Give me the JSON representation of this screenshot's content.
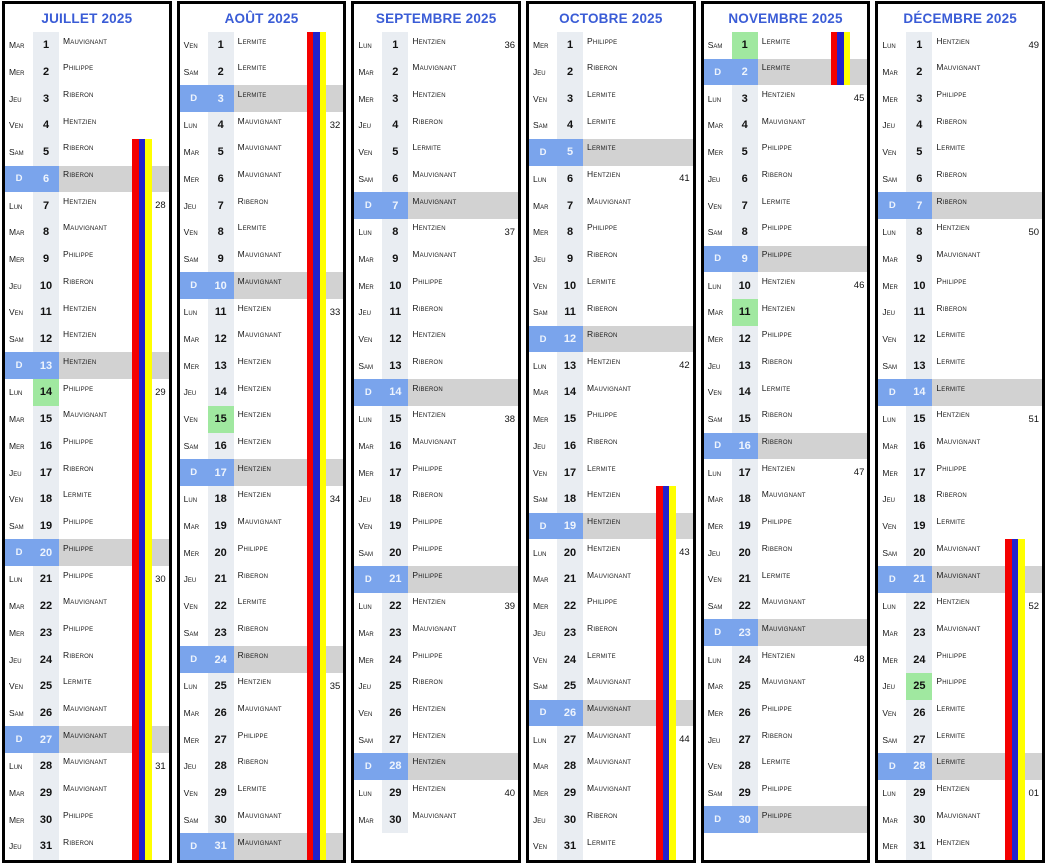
{
  "document": {
    "type": "on-call planning calendar",
    "year": "2025",
    "day_fields": [
      "dow",
      "num",
      "person",
      "week",
      "holiday"
    ]
  },
  "colors": {
    "header_blue": "#3a5cd6",
    "sunday_blue": "#7aa4ec",
    "sunday_gray": "#d2d2d2",
    "holiday_green": "#a0e8a0",
    "day_number_cell": "#e9edf2",
    "border_black": "#000000",
    "stripe_zones": [
      "#f40000",
      "#2222cc",
      "#ffff00"
    ]
  },
  "months": [
    {
      "title": "JUILLET 2025",
      "stripe": {
        "from": 5,
        "to": 31
      },
      "days": [
        [
          "Mar",
          1,
          "Mauvignant",
          "",
          0
        ],
        [
          "Mer",
          2,
          "Philippe",
          "",
          0
        ],
        [
          "Jeu",
          3,
          "Riberon",
          "",
          0
        ],
        [
          "Ven",
          4,
          "Hentzien",
          "",
          0
        ],
        [
          "Sam",
          5,
          "Riberon",
          "",
          0
        ],
        [
          "D",
          6,
          "Riberon",
          "",
          0
        ],
        [
          "Lun",
          7,
          "Hentzien",
          "28",
          0
        ],
        [
          "Mar",
          8,
          "Mauvignant",
          "",
          0
        ],
        [
          "Mer",
          9,
          "Philippe",
          "",
          0
        ],
        [
          "Jeu",
          10,
          "Riberon",
          "",
          0
        ],
        [
          "Ven",
          11,
          "Hentzien",
          "",
          0
        ],
        [
          "Sam",
          12,
          "Hentzien",
          "",
          0
        ],
        [
          "D",
          13,
          "Hentzien",
          "",
          0
        ],
        [
          "Lun",
          14,
          "Philippe",
          "29",
          1
        ],
        [
          "Mar",
          15,
          "Mauvignant",
          "",
          0
        ],
        [
          "Mer",
          16,
          "Philippe",
          "",
          0
        ],
        [
          "Jeu",
          17,
          "Riberon",
          "",
          0
        ],
        [
          "Ven",
          18,
          "Lermite",
          "",
          0
        ],
        [
          "Sam",
          19,
          "Philippe",
          "",
          0
        ],
        [
          "D",
          20,
          "Philippe",
          "",
          0
        ],
        [
          "Lun",
          21,
          "Philippe",
          "30",
          0
        ],
        [
          "Mar",
          22,
          "Mauvignant",
          "",
          0
        ],
        [
          "Mer",
          23,
          "Philippe",
          "",
          0
        ],
        [
          "Jeu",
          24,
          "Riberon",
          "",
          0
        ],
        [
          "Ven",
          25,
          "Lermite",
          "",
          0
        ],
        [
          "Sam",
          26,
          "Mauvignant",
          "",
          0
        ],
        [
          "D",
          27,
          "Mauvignant",
          "",
          0
        ],
        [
          "Lun",
          28,
          "Mauvignant",
          "31",
          0
        ],
        [
          "Mar",
          29,
          "Mauvignant",
          "",
          0
        ],
        [
          "Mer",
          30,
          "Philippe",
          "",
          0
        ],
        [
          "Jeu",
          31,
          "Riberon",
          "",
          0
        ]
      ]
    },
    {
      "title": "AOÛT 2025",
      "stripe": {
        "from": 1,
        "to": 31
      },
      "days": [
        [
          "Ven",
          1,
          "Lermite",
          "",
          0
        ],
        [
          "Sam",
          2,
          "Lermite",
          "",
          0
        ],
        [
          "D",
          3,
          "Lermite",
          "",
          0
        ],
        [
          "Lun",
          4,
          "Mauvignant",
          "32",
          0
        ],
        [
          "Mar",
          5,
          "Mauvignant",
          "",
          0
        ],
        [
          "Mer",
          6,
          "Mauvignant",
          "",
          0
        ],
        [
          "Jeu",
          7,
          "Riberon",
          "",
          0
        ],
        [
          "Ven",
          8,
          "Lermite",
          "",
          0
        ],
        [
          "Sam",
          9,
          "Mauvignant",
          "",
          0
        ],
        [
          "D",
          10,
          "Mauvignant",
          "",
          0
        ],
        [
          "Lun",
          11,
          "Hentzien",
          "33",
          0
        ],
        [
          "Mar",
          12,
          "Mauvignant",
          "",
          0
        ],
        [
          "Mer",
          13,
          "Hentzien",
          "",
          0
        ],
        [
          "Jeu",
          14,
          "Hentzien",
          "",
          0
        ],
        [
          "Ven",
          15,
          "Hentzien",
          "",
          1
        ],
        [
          "Sam",
          16,
          "Hentzien",
          "",
          0
        ],
        [
          "D",
          17,
          "Hentzien",
          "",
          0
        ],
        [
          "Lun",
          18,
          "Hentzien",
          "34",
          0
        ],
        [
          "Mar",
          19,
          "Mauvignant",
          "",
          0
        ],
        [
          "Mer",
          20,
          "Philippe",
          "",
          0
        ],
        [
          "Jeu",
          21,
          "Riberon",
          "",
          0
        ],
        [
          "Ven",
          22,
          "Lermite",
          "",
          0
        ],
        [
          "Sam",
          23,
          "Riberon",
          "",
          0
        ],
        [
          "D",
          24,
          "Riberon",
          "",
          0
        ],
        [
          "Lun",
          25,
          "Hentzien",
          "35",
          0
        ],
        [
          "Mar",
          26,
          "Mauvignant",
          "",
          0
        ],
        [
          "Mer",
          27,
          "Philippe",
          "",
          0
        ],
        [
          "Jeu",
          28,
          "Riberon",
          "",
          0
        ],
        [
          "Ven",
          29,
          "Lermite",
          "",
          0
        ],
        [
          "Sam",
          30,
          "Mauvignant",
          "",
          0
        ],
        [
          "D",
          31,
          "Mauvignant",
          "",
          0
        ]
      ]
    },
    {
      "title": "SEPTEMBRE 2025",
      "stripe": null,
      "days": [
        [
          "Lun",
          1,
          "Hentzien",
          "36",
          0
        ],
        [
          "Mar",
          2,
          "Mauvignant",
          "",
          0
        ],
        [
          "Mer",
          3,
          "Hentzien",
          "",
          0
        ],
        [
          "Jeu",
          4,
          "Riberon",
          "",
          0
        ],
        [
          "Ven",
          5,
          "Lermite",
          "",
          0
        ],
        [
          "Sam",
          6,
          "Mauvignant",
          "",
          0
        ],
        [
          "D",
          7,
          "Mauvignant",
          "",
          0
        ],
        [
          "Lun",
          8,
          "Hentzien",
          "37",
          0
        ],
        [
          "Mar",
          9,
          "Mauvignant",
          "",
          0
        ],
        [
          "Mer",
          10,
          "Philippe",
          "",
          0
        ],
        [
          "Jeu",
          11,
          "Riberon",
          "",
          0
        ],
        [
          "Ven",
          12,
          "Hentzien",
          "",
          0
        ],
        [
          "Sam",
          13,
          "Riberon",
          "",
          0
        ],
        [
          "D",
          14,
          "Riberon",
          "",
          0
        ],
        [
          "Lun",
          15,
          "Hentzien",
          "38",
          0
        ],
        [
          "Mar",
          16,
          "Mauvignant",
          "",
          0
        ],
        [
          "Mer",
          17,
          "Philippe",
          "",
          0
        ],
        [
          "Jeu",
          18,
          "Riberon",
          "",
          0
        ],
        [
          "Ven",
          19,
          "Philippe",
          "",
          0
        ],
        [
          "Sam",
          20,
          "Philippe",
          "",
          0
        ],
        [
          "D",
          21,
          "Philippe",
          "",
          0
        ],
        [
          "Lun",
          22,
          "Hentzien",
          "39",
          0
        ],
        [
          "Mar",
          23,
          "Mauvignant",
          "",
          0
        ],
        [
          "Mer",
          24,
          "Philippe",
          "",
          0
        ],
        [
          "Jeu",
          25,
          "Riberon",
          "",
          0
        ],
        [
          "Ven",
          26,
          "Hentzien",
          "",
          0
        ],
        [
          "Sam",
          27,
          "Hentzien",
          "",
          0
        ],
        [
          "D",
          28,
          "Hentzien",
          "",
          0
        ],
        [
          "Lun",
          29,
          "Hentzien",
          "40",
          0
        ],
        [
          "Mar",
          30,
          "Mauvignant",
          "",
          0
        ]
      ]
    },
    {
      "title": "OCTOBRE 2025",
      "stripe": {
        "from": 18,
        "to": 31
      },
      "days": [
        [
          "Mer",
          1,
          "Philippe",
          "",
          0
        ],
        [
          "Jeu",
          2,
          "Riberon",
          "",
          0
        ],
        [
          "Ven",
          3,
          "Lermite",
          "",
          0
        ],
        [
          "Sam",
          4,
          "Lermite",
          "",
          0
        ],
        [
          "D",
          5,
          "Lermite",
          "",
          0
        ],
        [
          "Lun",
          6,
          "Hentzien",
          "41",
          0
        ],
        [
          "Mar",
          7,
          "Mauvignant",
          "",
          0
        ],
        [
          "Mer",
          8,
          "Philippe",
          "",
          0
        ],
        [
          "Jeu",
          9,
          "Riberon",
          "",
          0
        ],
        [
          "Ven",
          10,
          "Lermite",
          "",
          0
        ],
        [
          "Sam",
          11,
          "Riberon",
          "",
          0
        ],
        [
          "D",
          12,
          "Riberon",
          "",
          0
        ],
        [
          "Lun",
          13,
          "Hentzien",
          "42",
          0
        ],
        [
          "Mar",
          14,
          "Mauvignant",
          "",
          0
        ],
        [
          "Mer",
          15,
          "Philippe",
          "",
          0
        ],
        [
          "Jeu",
          16,
          "Riberon",
          "",
          0
        ],
        [
          "Ven",
          17,
          "Lermite",
          "",
          0
        ],
        [
          "Sam",
          18,
          "Hentzien",
          "",
          0
        ],
        [
          "D",
          19,
          "Hentzien",
          "",
          0
        ],
        [
          "Lun",
          20,
          "Hentzien",
          "43",
          0
        ],
        [
          "Mar",
          21,
          "Mauvignant",
          "",
          0
        ],
        [
          "Mer",
          22,
          "Philippe",
          "",
          0
        ],
        [
          "Jeu",
          23,
          "Riberon",
          "",
          0
        ],
        [
          "Ven",
          24,
          "Lermite",
          "",
          0
        ],
        [
          "Sam",
          25,
          "Mauvignant",
          "",
          0
        ],
        [
          "D",
          26,
          "Mauvignant",
          "",
          0
        ],
        [
          "Lun",
          27,
          "Mauvignant",
          "44",
          0
        ],
        [
          "Mar",
          28,
          "Mauvignant",
          "",
          0
        ],
        [
          "Mer",
          29,
          "Mauvignant",
          "",
          0
        ],
        [
          "Jeu",
          30,
          "Riberon",
          "",
          0
        ],
        [
          "Ven",
          31,
          "Lermite",
          "",
          0
        ]
      ]
    },
    {
      "title": "NOVEMBRE 2025",
      "stripe": {
        "from": 1,
        "to": 2
      },
      "days": [
        [
          "Sam",
          1,
          "Lermite",
          "",
          1
        ],
        [
          "D",
          2,
          "Lermite",
          "",
          0
        ],
        [
          "Lun",
          3,
          "Hentzien",
          "45",
          0
        ],
        [
          "Mar",
          4,
          "Mauvignant",
          "",
          0
        ],
        [
          "Mer",
          5,
          "Philippe",
          "",
          0
        ],
        [
          "Jeu",
          6,
          "Riberon",
          "",
          0
        ],
        [
          "Ven",
          7,
          "Lermite",
          "",
          0
        ],
        [
          "Sam",
          8,
          "Philippe",
          "",
          0
        ],
        [
          "D",
          9,
          "Philippe",
          "",
          0
        ],
        [
          "Lun",
          10,
          "Hentzien",
          "46",
          0
        ],
        [
          "Mar",
          11,
          "Hentzien",
          "",
          1
        ],
        [
          "Mer",
          12,
          "Philippe",
          "",
          0
        ],
        [
          "Jeu",
          13,
          "Riberon",
          "",
          0
        ],
        [
          "Ven",
          14,
          "Lermite",
          "",
          0
        ],
        [
          "Sam",
          15,
          "Riberon",
          "",
          0
        ],
        [
          "D",
          16,
          "Riberon",
          "",
          0
        ],
        [
          "Lun",
          17,
          "Hentzien",
          "47",
          0
        ],
        [
          "Mar",
          18,
          "Mauvignant",
          "",
          0
        ],
        [
          "Mer",
          19,
          "Philippe",
          "",
          0
        ],
        [
          "Jeu",
          20,
          "Riberon",
          "",
          0
        ],
        [
          "Ven",
          21,
          "Lermite",
          "",
          0
        ],
        [
          "Sam",
          22,
          "Mauvignant",
          "",
          0
        ],
        [
          "D",
          23,
          "Mauvignant",
          "",
          0
        ],
        [
          "Lun",
          24,
          "Hentzien",
          "48",
          0
        ],
        [
          "Mar",
          25,
          "Mauvignant",
          "",
          0
        ],
        [
          "Mer",
          26,
          "Philippe",
          "",
          0
        ],
        [
          "Jeu",
          27,
          "Riberon",
          "",
          0
        ],
        [
          "Ven",
          28,
          "Lermite",
          "",
          0
        ],
        [
          "Sam",
          29,
          "Philippe",
          "",
          0
        ],
        [
          "D",
          30,
          "Philippe",
          "",
          0
        ]
      ]
    },
    {
      "title": "DÉCEMBRE 2025",
      "stripe": {
        "from": 20,
        "to": 31
      },
      "days": [
        [
          "Lun",
          1,
          "Hentzien",
          "49",
          0
        ],
        [
          "Mar",
          2,
          "Mauvignant",
          "",
          0
        ],
        [
          "Mer",
          3,
          "Philippe",
          "",
          0
        ],
        [
          "Jeu",
          4,
          "Riberon",
          "",
          0
        ],
        [
          "Ven",
          5,
          "Lermite",
          "",
          0
        ],
        [
          "Sam",
          6,
          "Riberon",
          "",
          0
        ],
        [
          "D",
          7,
          "Riberon",
          "",
          0
        ],
        [
          "Lun",
          8,
          "Hentzien",
          "50",
          0
        ],
        [
          "Mar",
          9,
          "Mauvignant",
          "",
          0
        ],
        [
          "Mer",
          10,
          "Philippe",
          "",
          0
        ],
        [
          "Jeu",
          11,
          "Riberon",
          "",
          0
        ],
        [
          "Ven",
          12,
          "Lermite",
          "",
          0
        ],
        [
          "Sam",
          13,
          "Lermite",
          "",
          0
        ],
        [
          "D",
          14,
          "Lermite",
          "",
          0
        ],
        [
          "Lun",
          15,
          "Hentzien",
          "51",
          0
        ],
        [
          "Mar",
          16,
          "Mauvignant",
          "",
          0
        ],
        [
          "Mer",
          17,
          "Philippe",
          "",
          0
        ],
        [
          "Jeu",
          18,
          "Riberon",
          "",
          0
        ],
        [
          "Ven",
          19,
          "Lermite",
          "",
          0
        ],
        [
          "Sam",
          20,
          "Mauvignant",
          "",
          0
        ],
        [
          "D",
          21,
          "Mauvignant",
          "",
          0
        ],
        [
          "Lun",
          22,
          "Hentzien",
          "52",
          0
        ],
        [
          "Mar",
          23,
          "Mauvignant",
          "",
          0
        ],
        [
          "Mer",
          24,
          "Philippe",
          "",
          0
        ],
        [
          "Jeu",
          25,
          "Philippe",
          "",
          1
        ],
        [
          "Ven",
          26,
          "Lermite",
          "",
          0
        ],
        [
          "Sam",
          27,
          "Lermite",
          "",
          0
        ],
        [
          "D",
          28,
          "Lermite",
          "",
          0
        ],
        [
          "Lun",
          29,
          "Hentzien",
          "01",
          0
        ],
        [
          "Mar",
          30,
          "Mauvignant",
          "",
          0
        ],
        [
          "Mer",
          31,
          "Hentzien",
          "",
          0
        ]
      ]
    }
  ]
}
